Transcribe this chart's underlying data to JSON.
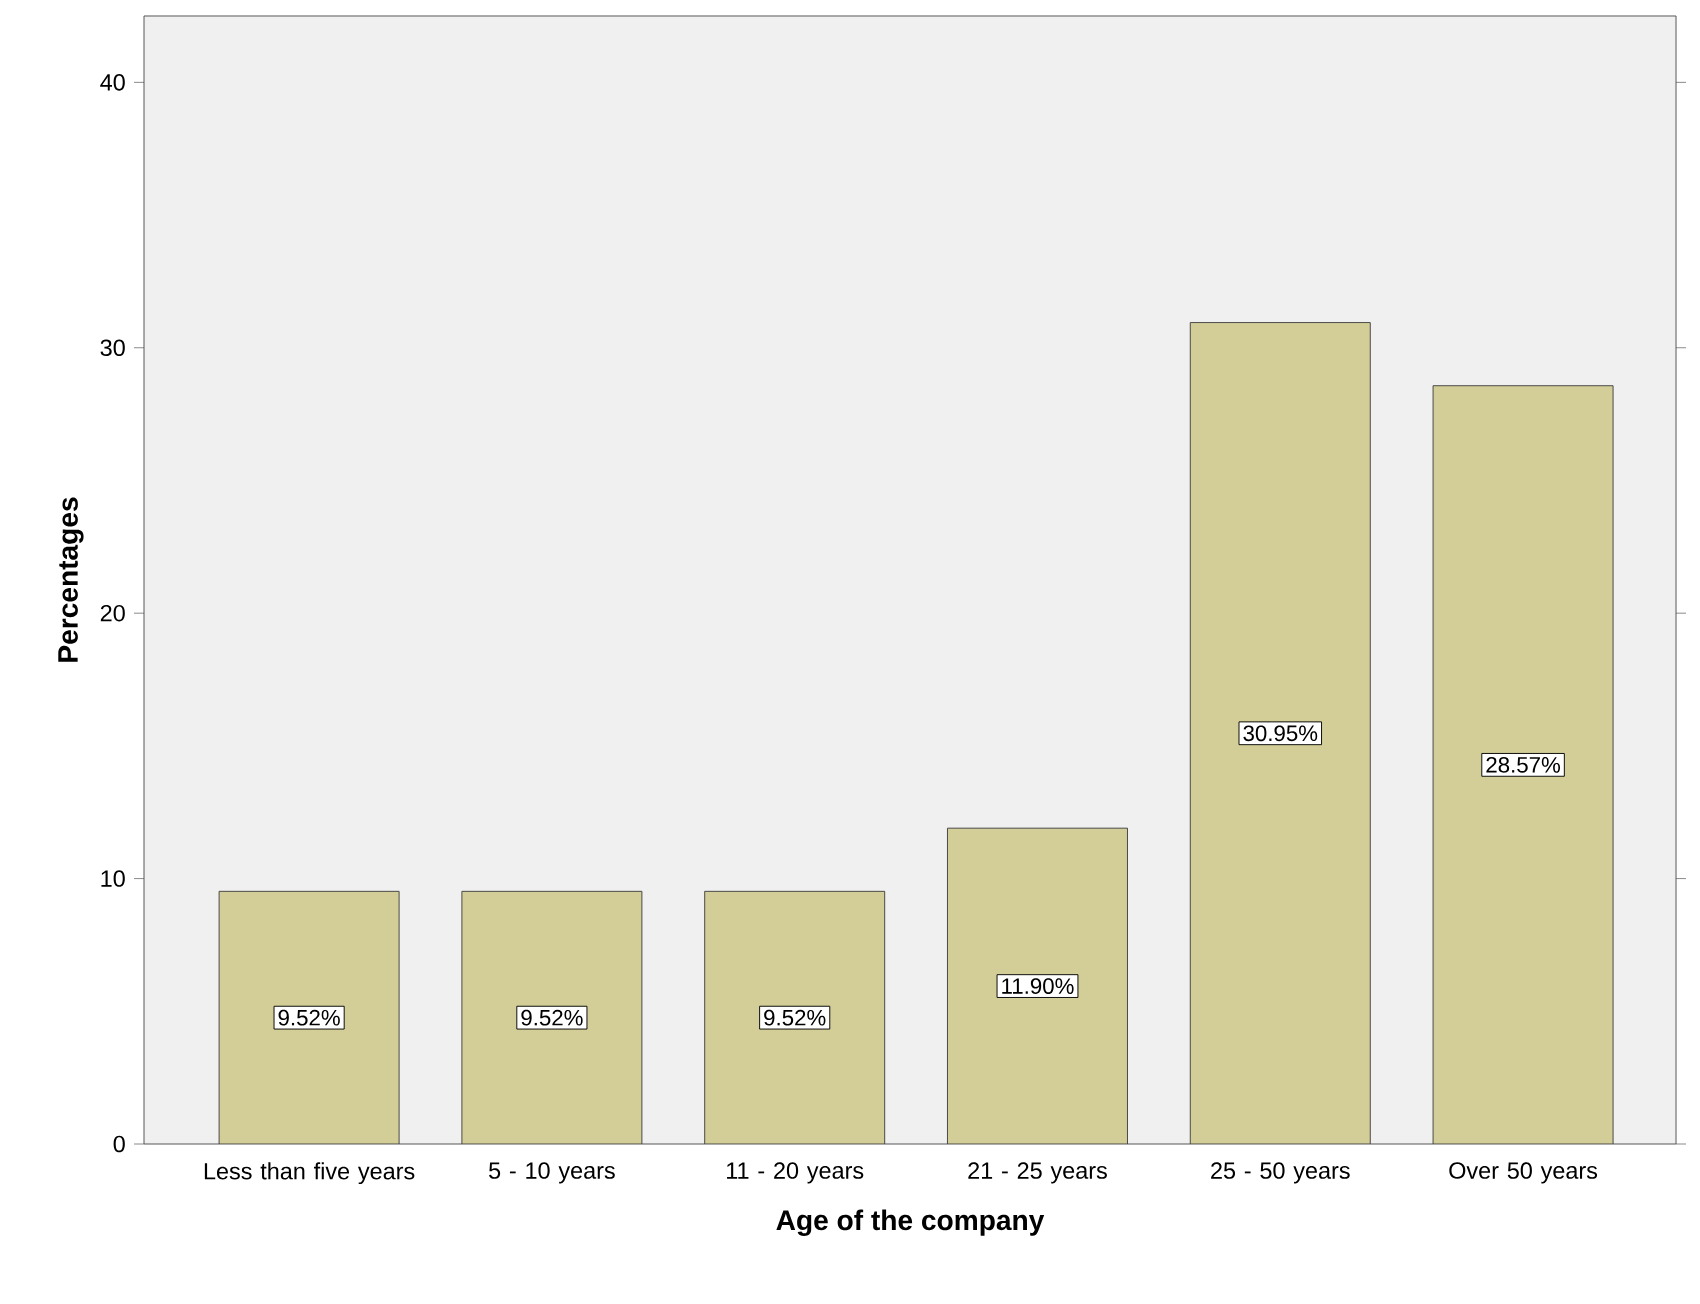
{
  "chart_data": {
    "type": "bar",
    "xlabel": "Age of the company",
    "ylabel": "Percentages",
    "categories": [
      "Less than five years",
      "5 - 10 years",
      "11 - 20 years",
      "21 - 25 years",
      "25 - 50 years",
      "Over 50 years"
    ],
    "values": [
      9.52,
      9.52,
      9.52,
      11.9,
      30.95,
      28.57
    ],
    "value_labels": [
      "9.52%",
      "9.52%",
      "9.52%",
      "11.90%",
      "30.95%",
      "28.57%"
    ],
    "color": "#d3ce97",
    "ylim": [
      0,
      42.5
    ],
    "yticks": [
      0,
      10,
      20,
      30,
      40
    ]
  }
}
